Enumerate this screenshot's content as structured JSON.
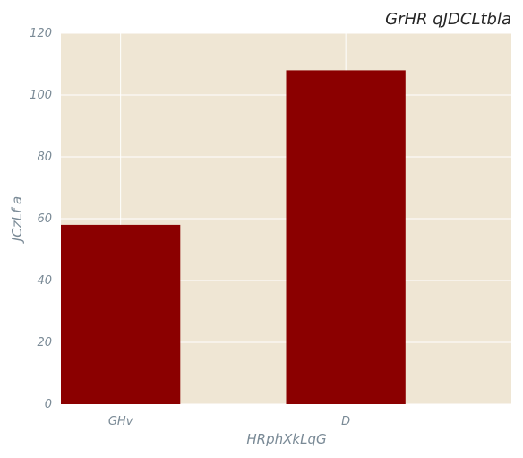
{
  "chart_data": {
    "type": "bar",
    "title": "GrHR qJDCLtbla",
    "xlabel": "HRphXkLqG",
    "ylabel": "JCzLf a",
    "categories": [
      "GHv",
      "D"
    ],
    "values": [
      58,
      108
    ],
    "ylim": [
      0,
      120
    ],
    "yticks": [
      0,
      20,
      40,
      60,
      80,
      100,
      120
    ],
    "grid": true,
    "colors": {
      "bar": "#8b0000",
      "plot_background": "#efe6d4",
      "grid": "#ffffff"
    }
  }
}
